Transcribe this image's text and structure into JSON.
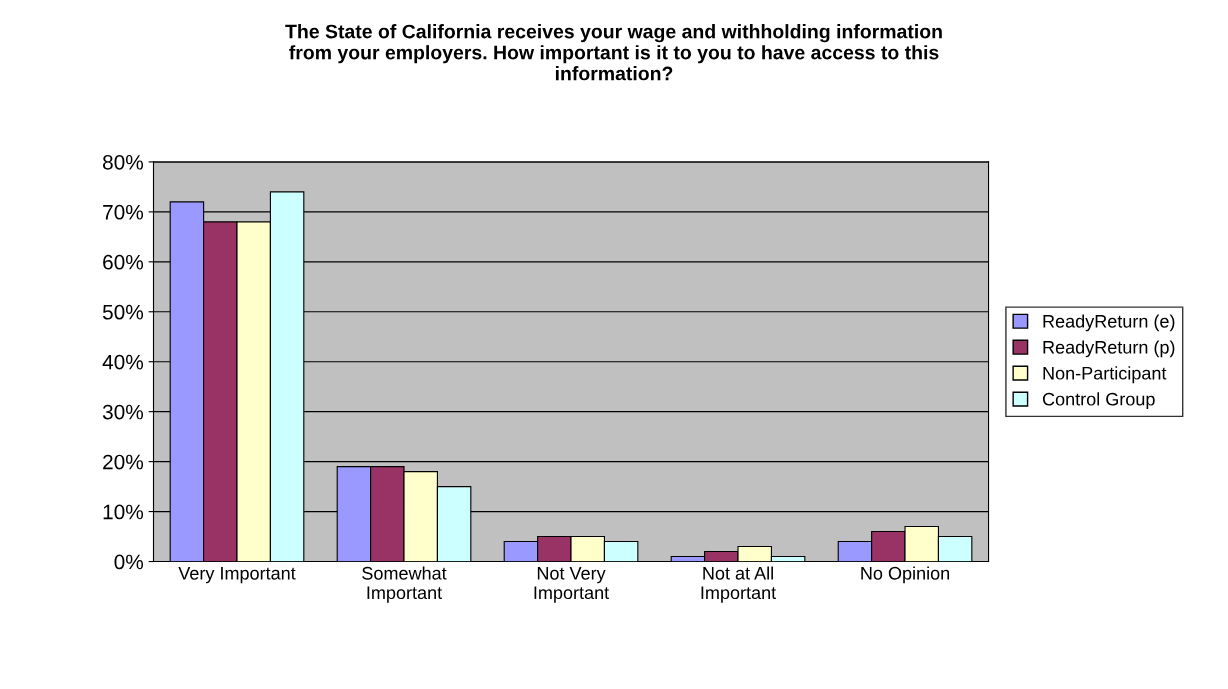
{
  "chart_data": {
    "type": "bar",
    "title": "The State of California receives your wage and withholding information\nfrom your employers. How important is it to you to have access to this\ninformation?",
    "categories": [
      "Very Important",
      "Somewhat\nImportant",
      "Not Very\nImportant",
      "Not at All\nImportant",
      "No Opinion"
    ],
    "series": [
      {
        "name": "ReadyReturn (e)",
        "color": "#9999ff",
        "values": [
          72,
          19,
          4,
          1,
          4
        ]
      },
      {
        "name": "ReadyReturn (p)",
        "color": "#993366",
        "values": [
          68,
          19,
          5,
          2,
          6
        ]
      },
      {
        "name": "Non-Participant",
        "color": "#ffffcc",
        "values": [
          68,
          18,
          5,
          3,
          7
        ]
      },
      {
        "name": "Control Group",
        "color": "#ccffff",
        "values": [
          74,
          15,
          4,
          1,
          5
        ]
      }
    ],
    "ylim": [
      0,
      80
    ],
    "yticks": [
      {
        "value": 0,
        "label": "0%"
      },
      {
        "value": 10,
        "label": "10%"
      },
      {
        "value": 20,
        "label": "20%"
      },
      {
        "value": 30,
        "label": "30%"
      },
      {
        "value": 40,
        "label": "40%"
      },
      {
        "value": 50,
        "label": "50%"
      },
      {
        "value": 60,
        "label": "60%"
      },
      {
        "value": 70,
        "label": "70%"
      },
      {
        "value": 80,
        "label": "80%"
      }
    ],
    "grid": "y",
    "legend": "right"
  }
}
